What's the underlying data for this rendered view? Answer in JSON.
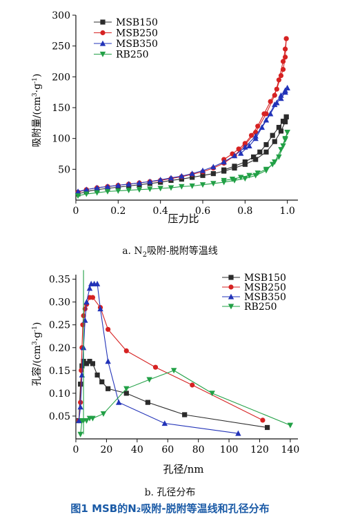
{
  "chart_data": [
    {
      "type": "line",
      "caption_prefix": "a. N",
      "caption_sub": "2",
      "caption_suffix": "吸附-脱附等温线",
      "xlabel": "压力比",
      "ylabel_main": "吸附量/(cm",
      "ylabel_sup1": "3",
      "ylabel_mid": "·g",
      "ylabel_sup2": "-1",
      "ylabel_end": ")",
      "xlim": [
        0,
        1.05
      ],
      "ylim": [
        0,
        300
      ],
      "xticks": [
        "0",
        "0.2",
        "0.4",
        "0.6",
        "0.8",
        "1.0"
      ],
      "yticks": [
        "50",
        "100",
        "150",
        "200",
        "250",
        "300"
      ],
      "legend_position": "top-left",
      "series": [
        {
          "name": "MSB150",
          "color": "#2b2b2b",
          "marker": "square",
          "adsorption": [
            [
              0.01,
              10
            ],
            [
              0.05,
              14
            ],
            [
              0.1,
              17
            ],
            [
              0.15,
              19
            ],
            [
              0.2,
              21
            ],
            [
              0.25,
              23
            ],
            [
              0.3,
              25
            ],
            [
              0.35,
              27
            ],
            [
              0.4,
              29
            ],
            [
              0.45,
              32
            ],
            [
              0.5,
              34
            ],
            [
              0.55,
              37
            ],
            [
              0.6,
              40
            ],
            [
              0.65,
              43
            ],
            [
              0.7,
              47
            ],
            [
              0.75,
              52
            ],
            [
              0.8,
              58
            ],
            [
              0.85,
              66
            ],
            [
              0.9,
              78
            ],
            [
              0.94,
              95
            ],
            [
              0.97,
              112
            ],
            [
              0.99,
              127
            ],
            [
              0.995,
              135
            ]
          ],
          "desorption": [
            [
              0.995,
              135
            ],
            [
              0.98,
              128
            ],
            [
              0.96,
              118
            ],
            [
              0.93,
              105
            ],
            [
              0.9,
              90
            ],
            [
              0.87,
              78
            ],
            [
              0.84,
              70
            ],
            [
              0.8,
              62
            ],
            [
              0.75,
              55
            ],
            [
              0.7,
              49
            ]
          ]
        },
        {
          "name": "MSB250",
          "color": "#d62222",
          "marker": "circle",
          "adsorption": [
            [
              0.01,
              13
            ],
            [
              0.05,
              17
            ],
            [
              0.1,
              20
            ],
            [
              0.15,
              22
            ],
            [
              0.2,
              24
            ],
            [
              0.25,
              26
            ],
            [
              0.3,
              28
            ],
            [
              0.35,
              30
            ],
            [
              0.4,
              32
            ],
            [
              0.45,
              35
            ],
            [
              0.5,
              38
            ],
            [
              0.55,
              42
            ],
            [
              0.6,
              46
            ],
            [
              0.65,
              52
            ],
            [
              0.7,
              60
            ],
            [
              0.75,
              72
            ],
            [
              0.8,
              90
            ],
            [
              0.85,
              110
            ],
            [
              0.9,
              140
            ],
            [
              0.94,
              170
            ],
            [
              0.96,
              195
            ],
            [
              0.98,
              225
            ],
            [
              0.99,
              245
            ],
            [
              0.995,
              262
            ]
          ],
          "desorption": [
            [
              0.995,
              262
            ],
            [
              0.99,
              232
            ],
            [
              0.98,
              212
            ],
            [
              0.97,
              202
            ],
            [
              0.95,
              180
            ],
            [
              0.92,
              160
            ],
            [
              0.89,
              140
            ],
            [
              0.86,
              120
            ],
            [
              0.83,
              105
            ],
            [
              0.8,
              92
            ],
            [
              0.77,
              83
            ],
            [
              0.74,
              75
            ],
            [
              0.7,
              66
            ]
          ]
        },
        {
          "name": "MSB350",
          "color": "#2233b8",
          "marker": "triangle-up",
          "adsorption": [
            [
              0.01,
              14
            ],
            [
              0.05,
              17
            ],
            [
              0.1,
              20
            ],
            [
              0.15,
              22
            ],
            [
              0.2,
              24
            ],
            [
              0.25,
              26
            ],
            [
              0.3,
              28
            ],
            [
              0.35,
              30
            ],
            [
              0.4,
              33
            ],
            [
              0.45,
              36
            ],
            [
              0.5,
              39
            ],
            [
              0.55,
              43
            ],
            [
              0.6,
              48
            ],
            [
              0.65,
              54
            ],
            [
              0.7,
              62
            ],
            [
              0.75,
              72
            ],
            [
              0.8,
              86
            ],
            [
              0.85,
              104
            ],
            [
              0.9,
              130
            ],
            [
              0.94,
              155
            ],
            [
              0.97,
              170
            ],
            [
              0.99,
              178
            ],
            [
              1.0,
              182
            ]
          ],
          "desorption": [
            [
              1.0,
              182
            ],
            [
              0.99,
              175
            ],
            [
              0.97,
              165
            ],
            [
              0.95,
              158
            ],
            [
              0.92,
              140
            ],
            [
              0.88,
              118
            ],
            [
              0.85,
              100
            ],
            [
              0.82,
              88
            ],
            [
              0.78,
              76
            ]
          ]
        },
        {
          "name": "RB250",
          "color": "#22a046",
          "marker": "triangle-down",
          "adsorption": [
            [
              0.01,
              7
            ],
            [
              0.05,
              10
            ],
            [
              0.1,
              12
            ],
            [
              0.15,
              14
            ],
            [
              0.2,
              15
            ],
            [
              0.25,
              16
            ],
            [
              0.3,
              17
            ],
            [
              0.35,
              18
            ],
            [
              0.4,
              19
            ],
            [
              0.45,
              20
            ],
            [
              0.5,
              22
            ],
            [
              0.55,
              23
            ],
            [
              0.6,
              25
            ],
            [
              0.65,
              27
            ],
            [
              0.7,
              29
            ],
            [
              0.75,
              32
            ],
            [
              0.8,
              35
            ],
            [
              0.85,
              40
            ],
            [
              0.9,
              48
            ],
            [
              0.94,
              62
            ],
            [
              0.97,
              82
            ],
            [
              0.99,
              100
            ],
            [
              1.0,
              110
            ]
          ],
          "desorption": [
            [
              1.0,
              110
            ],
            [
              0.99,
              98
            ],
            [
              0.98,
              88
            ],
            [
              0.96,
              70
            ],
            [
              0.93,
              58
            ],
            [
              0.9,
              50
            ],
            [
              0.86,
              44
            ],
            [
              0.82,
              40
            ],
            [
              0.78,
              37
            ],
            [
              0.74,
              34
            ],
            [
              0.7,
              32
            ]
          ]
        }
      ]
    },
    {
      "type": "line",
      "caption": "b. 孔径分布",
      "xlabel": "孔径/nm",
      "ylabel_main": "孔容/(cm",
      "ylabel_sup1": "3",
      "ylabel_mid": "·g",
      "ylabel_sup2": "-1",
      "ylabel_end": ")",
      "xlim": [
        0,
        145
      ],
      "ylim": [
        0,
        0.36
      ],
      "xticks": [
        "0",
        "20",
        "40",
        "60",
        "80",
        "100",
        "120",
        "140"
      ],
      "yticks": [
        "0.05",
        "0.10",
        "0.15",
        "0.20",
        "0.25",
        "0.30",
        "0.35"
      ],
      "legend_position": "top-right",
      "series": [
        {
          "name": "MSB150",
          "color": "#2b2b2b",
          "marker": "square",
          "points": [
            [
              2,
              0.04
            ],
            [
              3,
              0.12
            ],
            [
              4,
              0.16
            ],
            [
              5,
              0.17
            ],
            [
              6,
              0.165
            ],
            [
              7,
              0.165
            ],
            [
              9,
              0.17
            ],
            [
              11,
              0.165
            ],
            [
              14,
              0.14
            ],
            [
              17,
              0.125
            ],
            [
              21,
              0.11
            ],
            [
              33,
              0.1
            ],
            [
              47,
              0.08
            ],
            [
              71,
              0.053
            ],
            [
              125,
              0.025
            ]
          ]
        },
        {
          "name": "MSB250",
          "color": "#d62222",
          "marker": "circle",
          "points": [
            [
              2,
              0.04
            ],
            [
              3,
              0.08
            ],
            [
              3.5,
              0.15
            ],
            [
              4,
              0.2
            ],
            [
              4.5,
              0.25
            ],
            [
              5,
              0.27
            ],
            [
              6,
              0.285
            ],
            [
              7,
              0.295
            ],
            [
              9,
              0.31
            ],
            [
              11,
              0.31
            ],
            [
              16,
              0.288
            ],
            [
              21,
              0.24
            ],
            [
              33,
              0.193
            ],
            [
              52,
              0.157
            ],
            [
              76,
              0.118
            ],
            [
              122,
              0.041
            ]
          ]
        },
        {
          "name": "MSB350",
          "color": "#2233b8",
          "marker": "triangle-up",
          "points": [
            [
              2,
              0.04
            ],
            [
              3,
              0.07
            ],
            [
              4,
              0.14
            ],
            [
              5,
              0.2
            ],
            [
              6,
              0.26
            ],
            [
              7,
              0.3
            ],
            [
              9,
              0.33
            ],
            [
              10,
              0.34
            ],
            [
              12,
              0.34
            ],
            [
              14,
              0.34
            ],
            [
              16,
              0.285
            ],
            [
              21,
              0.17
            ],
            [
              28,
              0.08
            ],
            [
              58,
              0.034
            ],
            [
              106,
              0.012
            ]
          ]
        },
        {
          "name": "RB250",
          "color": "#22a046",
          "marker": "triangle-down",
          "points": [
            [
              3,
              0.01
            ],
            [
              4,
              0.04
            ],
            [
              5,
              0.04
            ],
            [
              7,
              0.04
            ],
            [
              9,
              0.045
            ],
            [
              11,
              0.045
            ],
            [
              18,
              0.055
            ],
            [
              33,
              0.11
            ],
            [
              48,
              0.13
            ],
            [
              64,
              0.15
            ],
            [
              89,
              0.1
            ],
            [
              140,
              0.03
            ]
          ]
        },
        {
          "name": "RB250-spike",
          "color": "#22a046",
          "marker": "none",
          "points": [
            [
              5,
              0.37
            ],
            [
              5,
              0.01
            ]
          ]
        }
      ]
    }
  ],
  "figure_caption": "图1   MSB的N₂吸附-脱附等温线和孔径分布"
}
